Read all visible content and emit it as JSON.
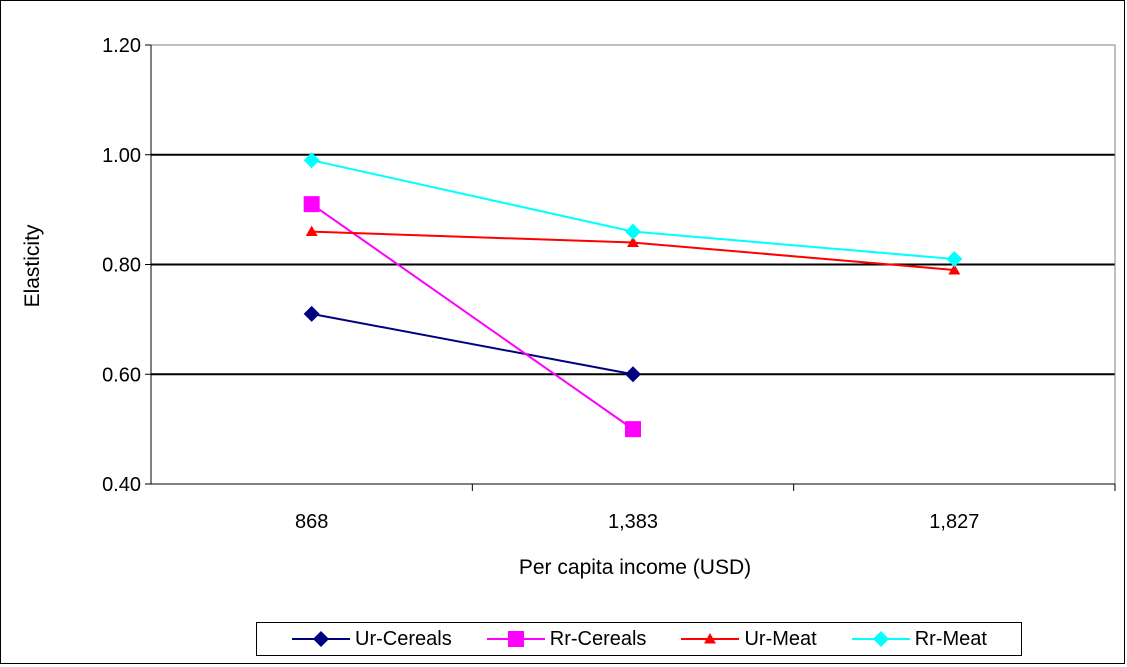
{
  "chart_data": {
    "type": "line",
    "title": "",
    "xlabel": "Per capita income (USD)",
    "ylabel": "Elasticity",
    "categories": [
      "868",
      "1,383",
      "1,827"
    ],
    "y_ticks": [
      "0.40",
      "0.60",
      "0.80",
      "1.00",
      "1.20"
    ],
    "ylim": [
      0.4,
      1.2
    ],
    "grid": "horizontal",
    "legend_position": "bottom",
    "series": [
      {
        "name": "Ur-Cereals",
        "values": [
          0.71,
          0.6,
          null
        ],
        "color": "#000080",
        "marker": "diamond"
      },
      {
        "name": "Rr-Cereals",
        "values": [
          0.91,
          0.5,
          null
        ],
        "color": "#ff00ff",
        "marker": "square"
      },
      {
        "name": "Ur-Meat",
        "values": [
          0.86,
          0.84,
          0.79
        ],
        "color": "#ff0000",
        "marker": "triangle"
      },
      {
        "name": "Rr-Meat",
        "values": [
          0.99,
          0.86,
          0.81
        ],
        "color": "#00ffff",
        "marker": "diamond"
      }
    ]
  }
}
